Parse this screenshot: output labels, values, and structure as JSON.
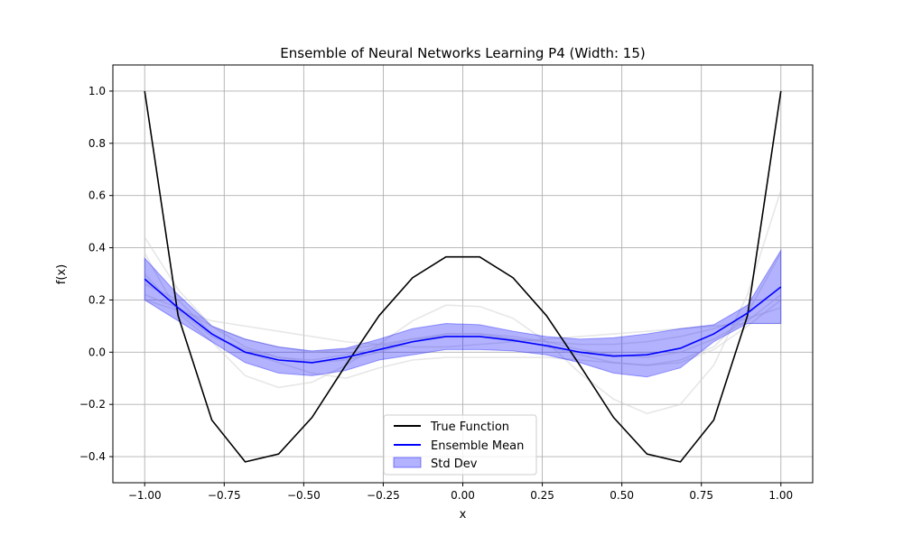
{
  "chart_data": {
    "type": "line",
    "title": "Ensemble of Neural Networks Learning P4 (Width: 15)",
    "xlabel": "x",
    "ylabel": "f(x)",
    "xlim": [
      -1.1,
      1.1
    ],
    "ylim": [
      -0.5,
      1.1
    ],
    "xticks": [
      -1.0,
      -0.75,
      -0.5,
      -0.25,
      0.0,
      0.25,
      0.5,
      0.75,
      1.0
    ],
    "xtick_labels": [
      "−1.00",
      "−0.75",
      "−0.50",
      "−0.25",
      "0.00",
      "0.25",
      "0.50",
      "0.75",
      "1.00"
    ],
    "yticks": [
      -0.4,
      -0.2,
      0.0,
      0.2,
      0.4,
      0.6,
      0.8,
      1.0
    ],
    "ytick_labels": [
      "−0.4",
      "−0.2",
      "0.0",
      "0.2",
      "0.4",
      "0.6",
      "0.8",
      "1.0"
    ],
    "grid": true,
    "legend_position": "lower-center",
    "x": [
      -1.0,
      -0.895,
      -0.789,
      -0.684,
      -0.579,
      -0.474,
      -0.368,
      -0.263,
      -0.158,
      -0.053,
      0.053,
      0.158,
      0.263,
      0.368,
      0.474,
      0.579,
      0.684,
      0.789,
      0.895,
      1.0
    ],
    "series": [
      {
        "name": "True Function",
        "color": "#000000",
        "values": [
          1.0,
          0.14,
          -0.26,
          -0.42,
          -0.39,
          -0.25,
          -0.05,
          0.14,
          0.285,
          0.365,
          0.365,
          0.285,
          0.14,
          -0.05,
          -0.25,
          -0.39,
          -0.42,
          -0.26,
          0.14,
          1.0
        ]
      },
      {
        "name": "Ensemble Mean",
        "color": "#0000ff",
        "values": [
          0.28,
          0.17,
          0.07,
          0.0,
          -0.03,
          -0.04,
          -0.02,
          0.01,
          0.04,
          0.06,
          0.06,
          0.045,
          0.025,
          0.0,
          -0.015,
          -0.01,
          0.015,
          0.07,
          0.15,
          0.25
        ]
      }
    ],
    "std_band": {
      "name": "Std Dev",
      "color": "#0000ff",
      "opacity": 0.3,
      "upper": [
        0.36,
        0.22,
        0.1,
        0.05,
        0.02,
        0.005,
        0.015,
        0.05,
        0.09,
        0.11,
        0.105,
        0.08,
        0.06,
        0.05,
        0.055,
        0.07,
        0.09,
        0.105,
        0.18,
        0.39
      ],
      "lower": [
        0.2,
        0.12,
        0.04,
        -0.04,
        -0.08,
        -0.09,
        -0.07,
        -0.03,
        -0.01,
        0.01,
        0.01,
        0.005,
        -0.01,
        -0.04,
        -0.08,
        -0.095,
        -0.06,
        0.04,
        0.11,
        0.11
      ]
    },
    "member_curves": {
      "color": "#d3d3d3",
      "curves": [
        [
          0.44,
          0.24,
          0.1,
          0.02,
          -0.02,
          -0.04,
          -0.03,
          0.0,
          0.04,
          0.07,
          0.07,
          0.05,
          0.02,
          -0.01,
          -0.04,
          -0.05,
          -0.03,
          0.02,
          0.15,
          0.38
        ],
        [
          0.38,
          0.15,
          0.04,
          -0.09,
          -0.135,
          -0.115,
          -0.05,
          0.03,
          0.12,
          0.18,
          0.175,
          0.13,
          0.04,
          -0.08,
          -0.18,
          -0.235,
          -0.2,
          -0.05,
          0.22,
          0.62
        ],
        [
          0.2,
          0.16,
          0.12,
          0.1,
          0.08,
          0.06,
          0.04,
          0.03,
          0.02,
          0.02,
          0.03,
          0.04,
          0.05,
          0.06,
          0.07,
          0.08,
          0.09,
          0.1,
          0.11,
          0.11
        ],
        [
          0.26,
          0.2,
          0.07,
          0.0,
          -0.04,
          -0.08,
          -0.1,
          -0.06,
          -0.03,
          -0.02,
          -0.02,
          -0.02,
          -0.02,
          -0.03,
          -0.04,
          -0.05,
          -0.04,
          0.01,
          0.1,
          0.2
        ],
        [
          0.3,
          0.16,
          0.06,
          0.01,
          -0.02,
          -0.03,
          -0.01,
          0.02,
          0.05,
          0.07,
          0.07,
          0.06,
          0.04,
          0.01,
          -0.01,
          -0.02,
          0.0,
          0.05,
          0.12,
          0.22
        ],
        [
          0.22,
          0.17,
          0.1,
          0.05,
          0.02,
          0.0,
          0.01,
          0.03,
          0.05,
          0.06,
          0.06,
          0.05,
          0.04,
          0.03,
          0.03,
          0.04,
          0.06,
          0.09,
          0.13,
          0.17
        ]
      ]
    }
  }
}
